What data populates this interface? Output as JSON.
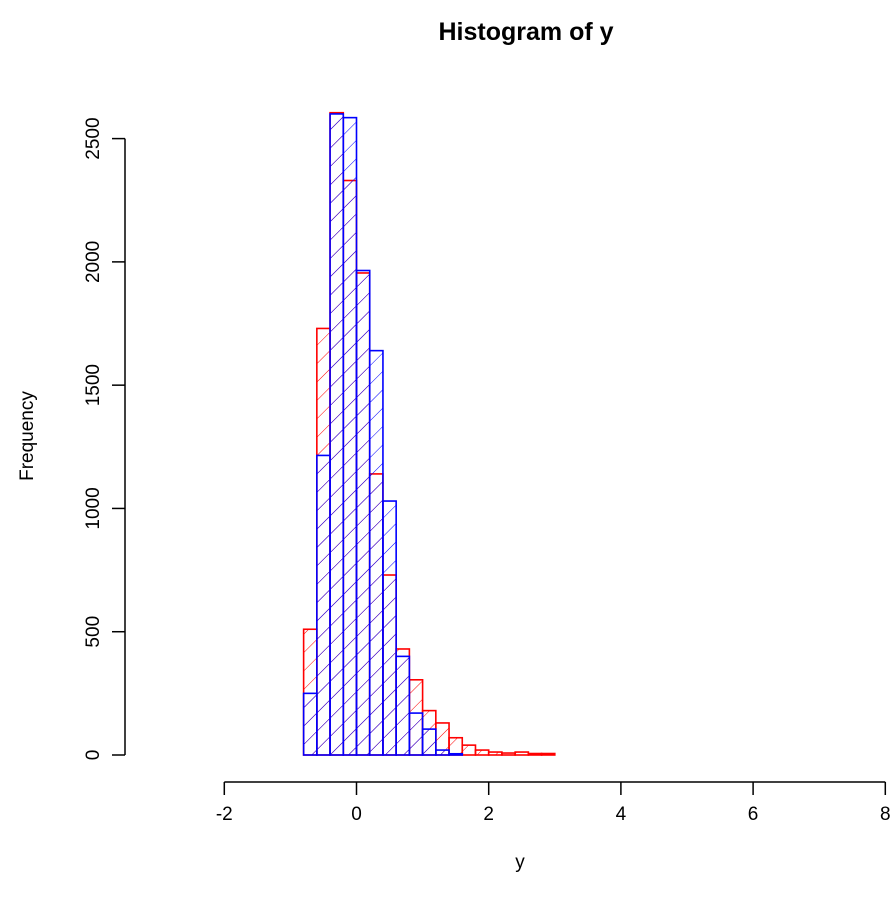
{
  "chart_data": {
    "type": "histogram",
    "title": "Histogram of y",
    "xlabel": "y",
    "ylabel": "Frequency",
    "xlim": [
      -2,
      8
    ],
    "ylim": [
      0,
      2600
    ],
    "x_ticks": [
      -2,
      0,
      2,
      4,
      6,
      8
    ],
    "y_ticks": [
      0,
      500,
      1000,
      1500,
      2000,
      2500
    ],
    "grid": false,
    "legend": "none",
    "colors": {
      "series_1": "#ff0000",
      "series_2": "#0000ff"
    },
    "bin_width": 0.2,
    "series": [
      {
        "color": "#ff0000",
        "bins": [
          {
            "x0": -1.0,
            "x1": -0.8,
            "count": 0
          },
          {
            "x0": -0.8,
            "x1": -0.6,
            "count": 510
          },
          {
            "x0": -0.6,
            "x1": -0.4,
            "count": 1730
          },
          {
            "x0": -0.4,
            "x1": -0.2,
            "count": 2605
          },
          {
            "x0": -0.2,
            "x1": 0.0,
            "count": 2330
          },
          {
            "x0": 0.0,
            "x1": 0.2,
            "count": 1955
          },
          {
            "x0": 0.2,
            "x1": 0.4,
            "count": 1140
          },
          {
            "x0": 0.4,
            "x1": 0.6,
            "count": 730
          },
          {
            "x0": 0.6,
            "x1": 0.8,
            "count": 430
          },
          {
            "x0": 0.8,
            "x1": 1.0,
            "count": 305
          },
          {
            "x0": 1.0,
            "x1": 1.2,
            "count": 180
          },
          {
            "x0": 1.2,
            "x1": 1.4,
            "count": 130
          },
          {
            "x0": 1.4,
            "x1": 1.6,
            "count": 70
          },
          {
            "x0": 1.6,
            "x1": 1.8,
            "count": 40
          },
          {
            "x0": 1.8,
            "x1": 2.0,
            "count": 20
          },
          {
            "x0": 2.0,
            "x1": 2.2,
            "count": 12
          },
          {
            "x0": 2.2,
            "x1": 2.4,
            "count": 8
          },
          {
            "x0": 2.4,
            "x1": 2.6,
            "count": 12
          },
          {
            "x0": 2.6,
            "x1": 2.8,
            "count": 6
          },
          {
            "x0": 2.8,
            "x1": 3.0,
            "count": 6
          },
          {
            "x0": 3.0,
            "x1": 4.8,
            "count": 0
          }
        ]
      },
      {
        "color": "#0000ff",
        "bins": [
          {
            "x0": -1.0,
            "x1": -0.8,
            "count": 0
          },
          {
            "x0": -0.8,
            "x1": -0.6,
            "count": 250
          },
          {
            "x0": -0.6,
            "x1": -0.4,
            "count": 1215
          },
          {
            "x0": -0.4,
            "x1": -0.2,
            "count": 2600
          },
          {
            "x0": -0.2,
            "x1": 0.0,
            "count": 2585
          },
          {
            "x0": 0.0,
            "x1": 0.2,
            "count": 1965
          },
          {
            "x0": 0.2,
            "x1": 0.4,
            "count": 1640
          },
          {
            "x0": 0.4,
            "x1": 0.6,
            "count": 1030
          },
          {
            "x0": 0.6,
            "x1": 0.8,
            "count": 400
          },
          {
            "x0": 0.8,
            "x1": 1.0,
            "count": 170
          },
          {
            "x0": 1.0,
            "x1": 1.2,
            "count": 105
          },
          {
            "x0": 1.2,
            "x1": 1.4,
            "count": 20
          },
          {
            "x0": 1.4,
            "x1": 1.6,
            "count": 5
          },
          {
            "x0": 1.6,
            "x1": 1.8,
            "count": 0
          }
        ]
      }
    ]
  }
}
